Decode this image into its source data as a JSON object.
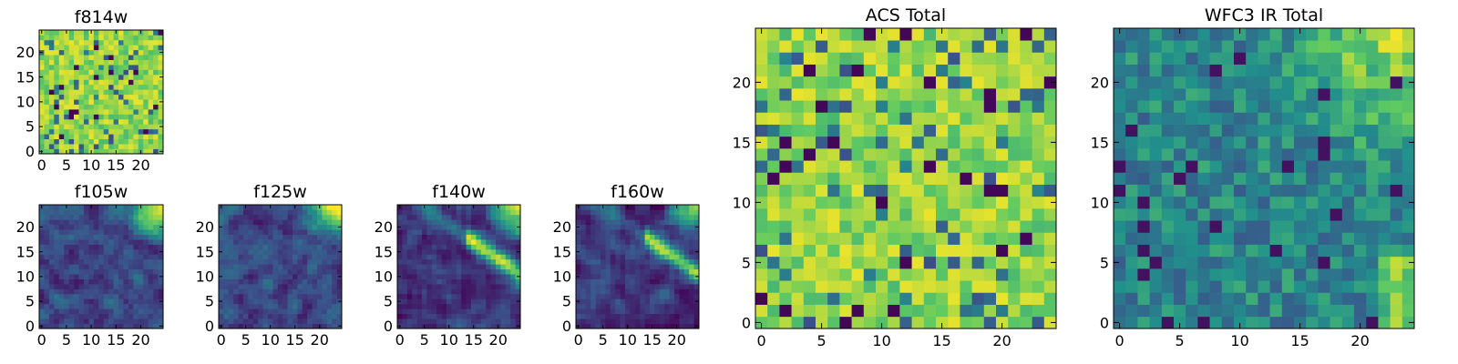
{
  "figure": {
    "background": "#ffffff",
    "colormap": "viridis",
    "colormap_stops": [
      "#440154",
      "#3b528b",
      "#21918c",
      "#5ec962",
      "#fde725"
    ]
  },
  "chart_data": [
    {
      "id": "f814w",
      "type": "heatmap",
      "title": "f814w",
      "grid_size": [
        25,
        25
      ],
      "xlim": [
        -0.5,
        24.5
      ],
      "ylim": [
        -0.5,
        24.5
      ],
      "xticks": [
        0,
        5,
        10,
        15,
        20
      ],
      "yticks": [
        0,
        5,
        10,
        15,
        20
      ],
      "xtick_labels": [
        "0",
        "5",
        "10",
        "15",
        "20"
      ],
      "ytick_labels": [
        "0",
        "5",
        "10",
        "15",
        "20"
      ],
      "pattern": "uniform noise, mostly green-yellow with scattered dark pixels",
      "value_range": [
        0,
        1
      ],
      "seed": 11
    },
    {
      "id": "f105w",
      "type": "heatmap",
      "title": "f105w",
      "grid_size": [
        25,
        25
      ],
      "xlim": [
        -0.5,
        24.5
      ],
      "ylim": [
        -0.5,
        24.5
      ],
      "xticks": [
        0,
        5,
        10,
        15,
        20
      ],
      "yticks": [
        0,
        5,
        10,
        15,
        20
      ],
      "xtick_labels": [
        "0",
        "5",
        "10",
        "15",
        "20"
      ],
      "ytick_labels": [
        "0",
        "5",
        "10",
        "15",
        "20"
      ],
      "pattern": "smooth blue-green noise with bright source in upper-right corner",
      "value_range": [
        0,
        1
      ],
      "seed": 23
    },
    {
      "id": "f125w",
      "type": "heatmap",
      "title": "f125w",
      "grid_size": [
        25,
        25
      ],
      "xlim": [
        -0.5,
        24.5
      ],
      "ylim": [
        -0.5,
        24.5
      ],
      "xticks": [
        0,
        5,
        10,
        15,
        20
      ],
      "yticks": [
        0,
        5,
        10,
        15,
        20
      ],
      "xtick_labels": [
        "0",
        "5",
        "10",
        "15",
        "20"
      ],
      "ytick_labels": [
        "0",
        "5",
        "10",
        "15",
        "20"
      ],
      "pattern": "smooth blue-green noise with bright source in upper-right corner",
      "value_range": [
        0,
        1
      ],
      "seed": 37
    },
    {
      "id": "f140w",
      "type": "heatmap",
      "title": "f140w",
      "grid_size": [
        25,
        25
      ],
      "xlim": [
        -0.5,
        24.5
      ],
      "ylim": [
        -0.5,
        24.5
      ],
      "xticks": [
        0,
        5,
        10,
        15,
        20
      ],
      "yticks": [
        0,
        5,
        10,
        15,
        20
      ],
      "xtick_labels": [
        "0",
        "5",
        "10",
        "15",
        "20"
      ],
      "ytick_labels": [
        "0",
        "5",
        "10",
        "15",
        "20"
      ],
      "pattern": "smooth blue-green noise with bright diagonal band toward upper-right",
      "value_range": [
        0,
        1
      ],
      "seed": 41
    },
    {
      "id": "f160w",
      "type": "heatmap",
      "title": "f160w",
      "grid_size": [
        25,
        25
      ],
      "xlim": [
        -0.5,
        24.5
      ],
      "ylim": [
        -0.5,
        24.5
      ],
      "xticks": [
        0,
        5,
        10,
        15,
        20
      ],
      "yticks": [
        0,
        5,
        10,
        15,
        20
      ],
      "xtick_labels": [
        "0",
        "5",
        "10",
        "15",
        "20"
      ],
      "ytick_labels": [
        "0",
        "5",
        "10",
        "15",
        "20"
      ],
      "pattern": "smooth blue-green noise with bright diagonal band toward upper-right",
      "value_range": [
        0,
        1
      ],
      "seed": 53
    },
    {
      "id": "acs_total",
      "type": "heatmap",
      "title": "ACS Total",
      "grid_size": [
        25,
        25
      ],
      "xlim": [
        -0.5,
        24.5
      ],
      "ylim": [
        -0.5,
        24.5
      ],
      "xticks": [
        0,
        5,
        10,
        15,
        20
      ],
      "yticks": [
        0,
        5,
        10,
        15,
        20
      ],
      "xtick_labels": [
        "0",
        "5",
        "10",
        "15",
        "20"
      ],
      "ytick_labels": [
        "0",
        "5",
        "10",
        "15",
        "20"
      ],
      "pattern": "uniform noise, mostly green-yellow with scattered dark pixels",
      "value_range": [
        0,
        1
      ],
      "seed": 67
    },
    {
      "id": "wfc3_ir_total",
      "type": "heatmap",
      "title": "WFC3 IR Total",
      "grid_size": [
        25,
        25
      ],
      "xlim": [
        -0.5,
        24.5
      ],
      "ylim": [
        -0.5,
        24.5
      ],
      "xticks": [
        0,
        5,
        10,
        15,
        20
      ],
      "yticks": [
        0,
        5,
        10,
        15,
        20
      ],
      "xtick_labels": [
        "0",
        "5",
        "10",
        "15",
        "20"
      ],
      "ytick_labels": [
        "0",
        "5",
        "10",
        "15",
        "20"
      ],
      "pattern": "green-teal noise with bright region in upper-right and along right edge",
      "value_range": [
        0,
        1
      ],
      "seed": 79
    }
  ]
}
